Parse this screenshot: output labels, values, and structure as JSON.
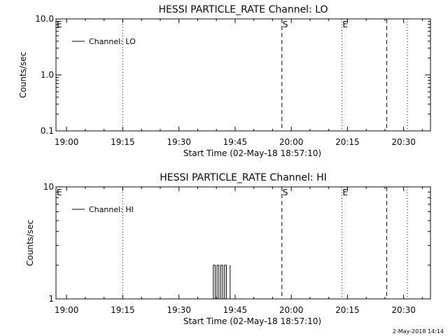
{
  "footer_timestamp": "2-May-2018 14:14",
  "chart_data": [
    {
      "type": "line",
      "title": "HESSI PARTICLE_RATE Channel: LO",
      "xlabel": "Start Time (02-May-18 18:57:10)",
      "ylabel": "Counts/sec",
      "yscale": "log",
      "ylim": [
        0.1,
        10.0
      ],
      "yticks": [
        0.1,
        1.0,
        10.0
      ],
      "ytick_labels": [
        "0.1",
        "1.0",
        "10.0"
      ],
      "xlim": [
        "18:57:10",
        "20:37:10"
      ],
      "xtick_labels": [
        "19:00",
        "19:15",
        "19:30",
        "19:45",
        "20:00",
        "20:15",
        "20:30"
      ],
      "legend": {
        "position": "top-left",
        "entries": [
          "Channel: LO"
        ]
      },
      "series": [
        {
          "name": "Channel: LO",
          "x": [],
          "values": []
        }
      ],
      "markers": [
        {
          "time": "18:57:10",
          "style": "dotted",
          "label": "E"
        },
        {
          "time": "19:15:00",
          "style": "dotted",
          "label": ""
        },
        {
          "time": "19:57:30",
          "style": "dashed",
          "label": "S"
        },
        {
          "time": "20:13:30",
          "style": "dotted",
          "label": "E"
        },
        {
          "time": "20:25:30",
          "style": "dashed",
          "label": ""
        },
        {
          "time": "20:31:00",
          "style": "dotted",
          "label": ""
        }
      ]
    },
    {
      "type": "line",
      "title": "HESSI PARTICLE_RATE Channel: HI",
      "xlabel": "Start Time (02-May-18 18:57:10)",
      "ylabel": "Counts/sec",
      "yscale": "log",
      "ylim": [
        1,
        10
      ],
      "yticks": [
        1,
        10
      ],
      "ytick_labels": [
        "1",
        "10"
      ],
      "xlim": [
        "18:57:10",
        "20:37:10"
      ],
      "xtick_labels": [
        "19:00",
        "19:15",
        "19:30",
        "19:45",
        "20:00",
        "20:15",
        "20:30"
      ],
      "legend": {
        "position": "top-left",
        "entries": [
          "Channel: HI"
        ]
      },
      "series": [
        {
          "name": "Channel: HI",
          "x": [
            "19:38:40",
            "19:39:10",
            "19:39:40",
            "19:40:10",
            "19:40:40",
            "19:41:10",
            "19:41:40",
            "19:42:10",
            "19:42:40",
            "19:43:10",
            "19:43:40"
          ],
          "values": [
            1,
            2,
            1,
            2,
            1,
            2,
            1,
            2,
            1,
            1,
            2
          ]
        }
      ],
      "markers": [
        {
          "time": "18:57:10",
          "style": "dotted",
          "label": "E"
        },
        {
          "time": "19:15:00",
          "style": "dotted",
          "label": ""
        },
        {
          "time": "19:57:30",
          "style": "dashed",
          "label": "S"
        },
        {
          "time": "20:13:30",
          "style": "dotted",
          "label": "E"
        },
        {
          "time": "20:25:30",
          "style": "dashed",
          "label": ""
        },
        {
          "time": "20:31:00",
          "style": "dotted",
          "label": ""
        }
      ]
    }
  ]
}
